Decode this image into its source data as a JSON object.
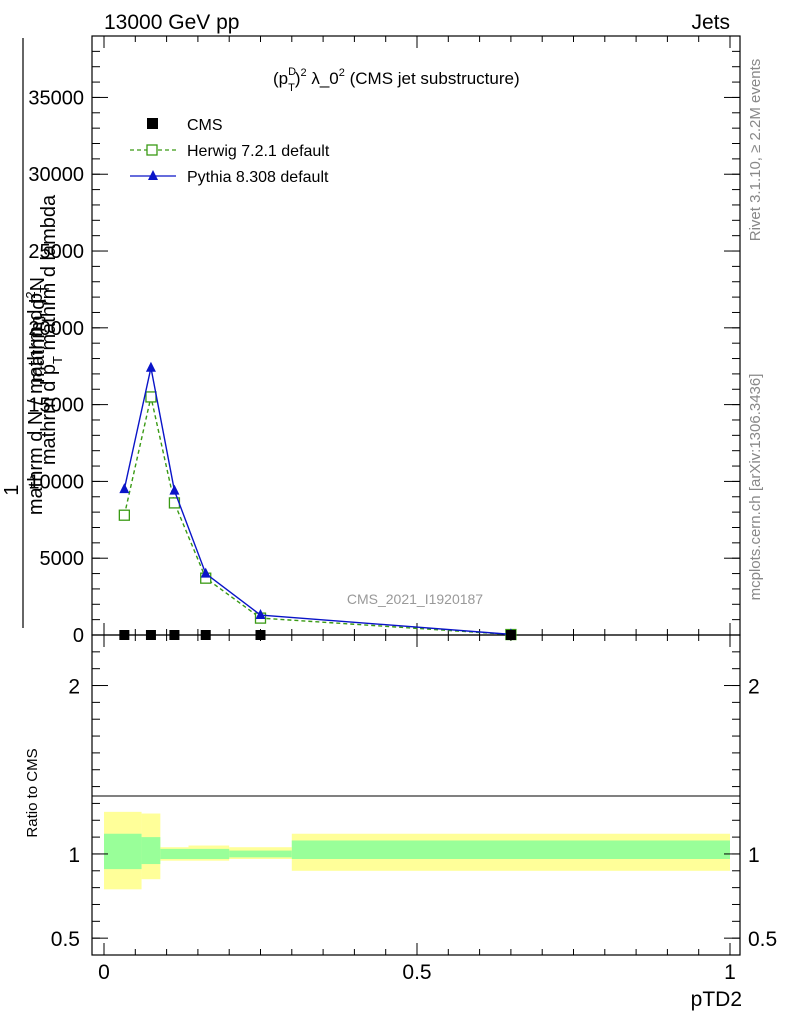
{
  "header": {
    "left": "13000 GeV pp",
    "right": "Jets"
  },
  "side_labels": {
    "rivet": "Rivet 3.1.10, ≥ 2.2M events",
    "mcplots": "mcplots.cern.ch [arXiv:1306.3436]"
  },
  "chart_data": {
    "type": "line",
    "title": "(p_T^D)^2 λ_0^2 (CMS jet substructure)",
    "title_parts": {
      "p": "(p",
      "sup1": "D",
      "sub1": "T",
      "close": ")",
      "sup2": "2",
      "mid": " λ_0",
      "sup3": "2",
      "tail": " (CMS jet substructure)"
    },
    "watermark": "CMS_2021_I1920187",
    "xlabel": "pTD2",
    "ylabel_top": "mathrm d^{2}N / mathrm d p_T mathrm d lambda",
    "ylabel_top_parts": {
      "one": "1",
      "den": "mathrm d N / mathrm d p",
      "den_sub": "T",
      "num1": "mathrm d",
      "num1_sup": "2",
      "num2": "N",
      "num3": "mathrm d p",
      "num3_sub": "T",
      "num4": " mathrm d lambda"
    },
    "ylabel_ratio": "Ratio to CMS",
    "xlim": [
      0,
      1
    ],
    "ylim_main": [
      0,
      39000
    ],
    "ylim_ratio": [
      0.4,
      2.3
    ],
    "x_ticks": [
      0,
      0.5,
      1
    ],
    "x_tick_labels": [
      "0",
      "0.5",
      "1"
    ],
    "y_ticks_main": [
      0,
      5000,
      10000,
      15000,
      20000,
      25000,
      30000,
      35000
    ],
    "y_tick_labels_main": [
      "0",
      "5000",
      "10000",
      "15000",
      "20000",
      "25000",
      "30000",
      "35000"
    ],
    "y_ticks_ratio": [
      0.5,
      1,
      2
    ],
    "y_tick_labels_ratio": [
      "0.5",
      "1",
      "2"
    ],
    "legend_position": "top-left",
    "series": [
      {
        "name": "CMS",
        "color": "#000000",
        "marker": "square-filled",
        "x": [
          0.0325,
          0.075,
          0.1125,
          0.1625,
          0.25,
          0.65
        ],
        "y": [
          0,
          0,
          0,
          0,
          0,
          0
        ]
      },
      {
        "name": "Herwig 7.2.1 default",
        "color": "#3a9a14",
        "marker": "square-open",
        "dash": true,
        "x": [
          0.0325,
          0.075,
          0.1125,
          0.1625,
          0.25,
          0.65
        ],
        "y": [
          7800,
          15500,
          8600,
          3700,
          1100,
          30
        ]
      },
      {
        "name": "Pythia 8.308 default",
        "color": "#0a14c8",
        "marker": "triangle-filled",
        "x": [
          0.0325,
          0.075,
          0.1125,
          0.1625,
          0.25,
          0.65
        ],
        "y": [
          9500,
          17400,
          9400,
          4000,
          1300,
          40
        ]
      }
    ],
    "ratio_bands": {
      "edges": [
        0,
        0.06,
        0.09,
        0.135,
        0.2,
        0.3,
        1.0
      ],
      "green_lo": [
        0.91,
        0.94,
        0.97,
        0.97,
        0.98,
        0.97
      ],
      "green_hi": [
        1.12,
        1.1,
        1.03,
        1.03,
        1.02,
        1.08
      ],
      "yellow_lo": [
        0.79,
        0.85,
        0.96,
        0.96,
        0.97,
        0.9
      ],
      "yellow_hi": [
        1.25,
        1.24,
        1.04,
        1.05,
        1.04,
        1.12
      ],
      "green_color": "#99ff99",
      "yellow_color": "#ffff99"
    }
  }
}
